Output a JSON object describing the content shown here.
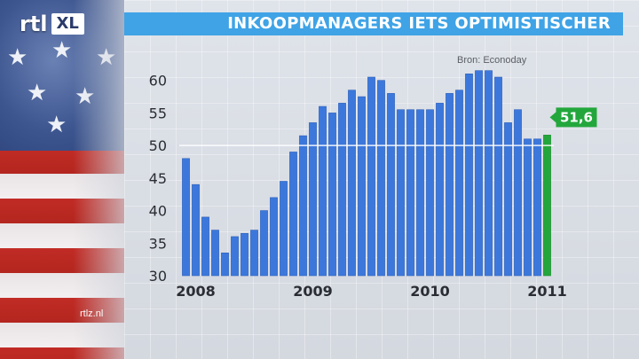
{
  "title": "INKOOPMANAGERS IETS OPTIMISTISCHER",
  "source": "Bron: Econoday",
  "logo": {
    "rtl": "rtl",
    "xl": "XL"
  },
  "site": "rtlz.nl",
  "colors": {
    "bar": "#3c78dc",
    "bar_highlight": "#23a73c",
    "title_bg": "#3fa3e6",
    "callout_bg": "#23a73c"
  },
  "chart_data": {
    "type": "bar",
    "title": "INKOOPMANAGERS IETS OPTIMISTISCHER",
    "xlabel": "",
    "ylabel": "",
    "ylim": [
      30,
      62
    ],
    "yticks": [
      30,
      35,
      40,
      45,
      50,
      55,
      60
    ],
    "xtick_labels": [
      {
        "label": "2008",
        "index": 0
      },
      {
        "label": "2009",
        "index": 12
      },
      {
        "label": "2010",
        "index": 24
      },
      {
        "label": "2011",
        "index": 36
      }
    ],
    "reference_line": 50,
    "grid": false,
    "values": [
      48,
      44,
      39,
      37,
      33.5,
      36,
      36.5,
      37,
      40,
      42,
      44.5,
      49,
      51.5,
      53.5,
      56,
      55,
      56.5,
      58.5,
      57.5,
      60.5,
      60,
      58,
      55.5,
      55.5,
      55.5,
      55.5,
      56.5,
      58,
      58.5,
      61,
      61.5,
      61.5,
      60.5,
      53.5,
      55.5,
      51,
      51,
      51.6
    ],
    "highlight": {
      "index": 37,
      "value": 51.6,
      "label": "51,6"
    }
  }
}
